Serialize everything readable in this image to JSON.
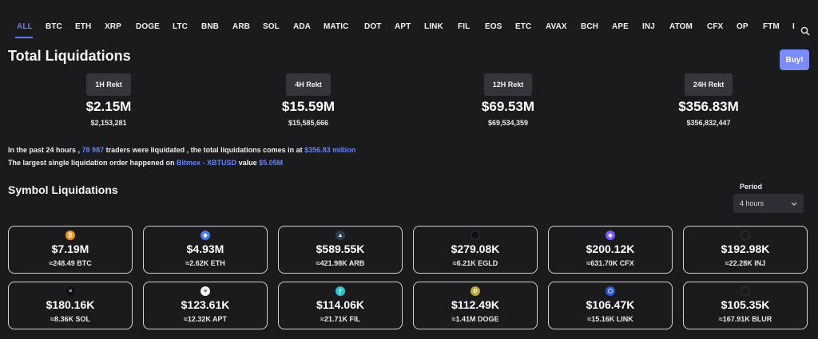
{
  "tabs": [
    "ALL",
    "BTC",
    "ETH",
    "XRP",
    "DOGE",
    "LTC",
    "BNB",
    "ARB",
    "SOL",
    "ADA",
    "MATIC",
    "DOT",
    "APT",
    "LINK",
    "FIL",
    "EOS",
    "ETC",
    "AVAX",
    "BCH",
    "APE",
    "INJ",
    "ATOM",
    "CFX",
    "OP",
    "FTM",
    "I"
  ],
  "active_tab": "ALL",
  "header": {
    "title": "Total Liquidations",
    "buy_label": "Buy!"
  },
  "stats": [
    {
      "label": "1H Rekt",
      "value": "$2.15M",
      "exact": "$2,153,281"
    },
    {
      "label": "4H Rekt",
      "value": "$15.59M",
      "exact": "$15,585,666"
    },
    {
      "label": "12H Rekt",
      "value": "$69.53M",
      "exact": "$69,534,359"
    },
    {
      "label": "24H Rekt",
      "value": "$356.83M",
      "exact": "$356,832,447"
    }
  ],
  "summary": {
    "line1_a": "In the past 24 hours ,",
    "traders": "78 987",
    "line1_b": "traders were liquidated , the total liquidations comes in at",
    "total": "$356.83 million",
    "line2_a": "The largest single liquidation order happened on",
    "exchange": "Bitmex - XBTUSD",
    "line2_b": "value",
    "largest": "$5.05M"
  },
  "symbols": {
    "title": "Symbol Liquidations",
    "period_label": "Period",
    "period_value": "4 hours",
    "cards": [
      {
        "icon": "btc-icon",
        "color": "#f7931a",
        "glyph": "₿",
        "amount": "$7.19M",
        "sub": "≈248.49 BTC"
      },
      {
        "icon": "eth-icon",
        "color": "#4b7bec",
        "glyph": "◆",
        "amount": "$4.93M",
        "sub": "≈2.62K ETH"
      },
      {
        "icon": "arb-icon",
        "color": "#2d3a55",
        "glyph": "▲",
        "amount": "$589.55K",
        "sub": "≈421.98K ARB"
      },
      {
        "icon": "egld-icon",
        "color": "#101018",
        "glyph": "",
        "amount": "$279.08K",
        "sub": "≈6.21K EGLD"
      },
      {
        "icon": "cfx-icon",
        "color": "#7b5cf5",
        "glyph": "◈",
        "amount": "$200.12K",
        "sub": "≈631.70K CFX"
      },
      {
        "icon": "inj-icon",
        "color": "#1b1b1e",
        "glyph": "",
        "amount": "$192.98K",
        "sub": "≈22.28K INJ"
      },
      {
        "icon": "sol-icon",
        "color": "#111118",
        "glyph": "≡",
        "amount": "$180.16K",
        "sub": "≈8.36K SOL"
      },
      {
        "icon": "apt-icon",
        "color": "#f2f2f2",
        "glyph": "≡",
        "amount": "$123.61K",
        "sub": "≈12.32K APT"
      },
      {
        "icon": "fil-icon",
        "color": "#2fc3cf",
        "glyph": "ƒ",
        "amount": "$114.06K",
        "sub": "≈21.71K FIL"
      },
      {
        "icon": "doge-icon",
        "color": "#c2a633",
        "glyph": "Ð",
        "amount": "$112.49K",
        "sub": "≈1.41M DOGE"
      },
      {
        "icon": "link-icon",
        "color": "#2a5ada",
        "glyph": "⬡",
        "amount": "$106.47K",
        "sub": "≈15.16K LINK"
      },
      {
        "icon": "blur-icon",
        "color": "#1b1b1e",
        "glyph": "",
        "amount": "$105.35K",
        "sub": "≈167.91K BLUR"
      }
    ]
  }
}
